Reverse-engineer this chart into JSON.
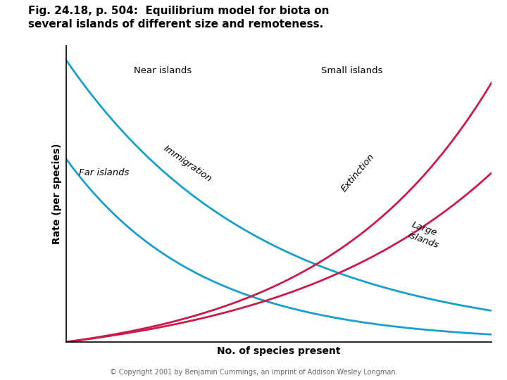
{
  "title_line1": "Fig. 24.18, p. 504:  Equilibrium model for biota on",
  "title_line2": "several islands of different size and remoteness.",
  "xlabel": "No. of species present",
  "ylabel": "Rate (per species)",
  "immigration_color": "#1a9fcc",
  "extinction_color": "#cc1a4a",
  "near_label": "Near islands",
  "far_label": "Far islands",
  "small_label": "Small islands",
  "large_label": "Large\nislands",
  "immigration_label": "Immigration",
  "extinction_label": "Extinction",
  "copyright": "© Copyright 2001 by Benjamin Cummings, an imprint of Addison Wesley Longman.",
  "background_color": "#ffffff",
  "title_fontsize": 11,
  "axis_label_fontsize": 10,
  "annotation_fontsize": 9.5
}
